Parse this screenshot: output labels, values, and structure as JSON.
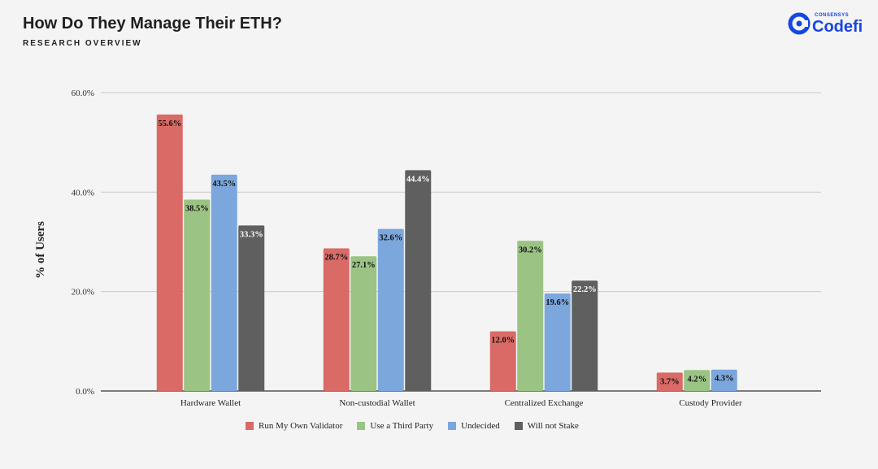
{
  "header": {
    "title": "How Do They Manage Their ETH?",
    "subtitle": "RESEARCH OVERVIEW"
  },
  "logo": {
    "small": "CONSENSYS",
    "big": "Codefi",
    "icon": "codefi-logo-icon",
    "color": "#1746e0"
  },
  "chart_data": {
    "type": "bar",
    "title": "",
    "xlabel": "",
    "ylabel": "% of Users",
    "ylim": [
      0,
      60
    ],
    "yticks": [
      "0.0%",
      "20.0%",
      "40.0%",
      "60.0%"
    ],
    "ytick_values": [
      0,
      20,
      40,
      60
    ],
    "grid": true,
    "legend_position": "bottom",
    "categories": [
      "Hardware Wallet",
      "Non-custodial Wallet",
      "Centralized Exchange",
      "Custody Provider"
    ],
    "series": [
      {
        "name": "Run My Own Validator",
        "color": "#d96a66",
        "values": [
          55.6,
          28.7,
          12.0,
          3.7
        ],
        "labels": [
          "55.6%",
          "28.7%",
          "12.0%",
          "3.7%"
        ]
      },
      {
        "name": "Use a Third Party",
        "color": "#9bc383",
        "values": [
          38.5,
          27.1,
          30.2,
          4.2
        ],
        "labels": [
          "38.5%",
          "27.1%",
          "30.2%",
          "4.2%"
        ]
      },
      {
        "name": "Undecided",
        "color": "#7ba7dc",
        "values": [
          43.5,
          32.6,
          19.6,
          4.3
        ],
        "labels": [
          "43.5%",
          "32.6%",
          "19.6%",
          "4.3%"
        ]
      },
      {
        "name": "Will not Stake",
        "color": "#5f5f5f",
        "values": [
          33.3,
          44.4,
          22.2,
          null
        ],
        "labels": [
          "33.3%",
          "44.4%",
          "22.2%",
          ""
        ]
      }
    ]
  }
}
